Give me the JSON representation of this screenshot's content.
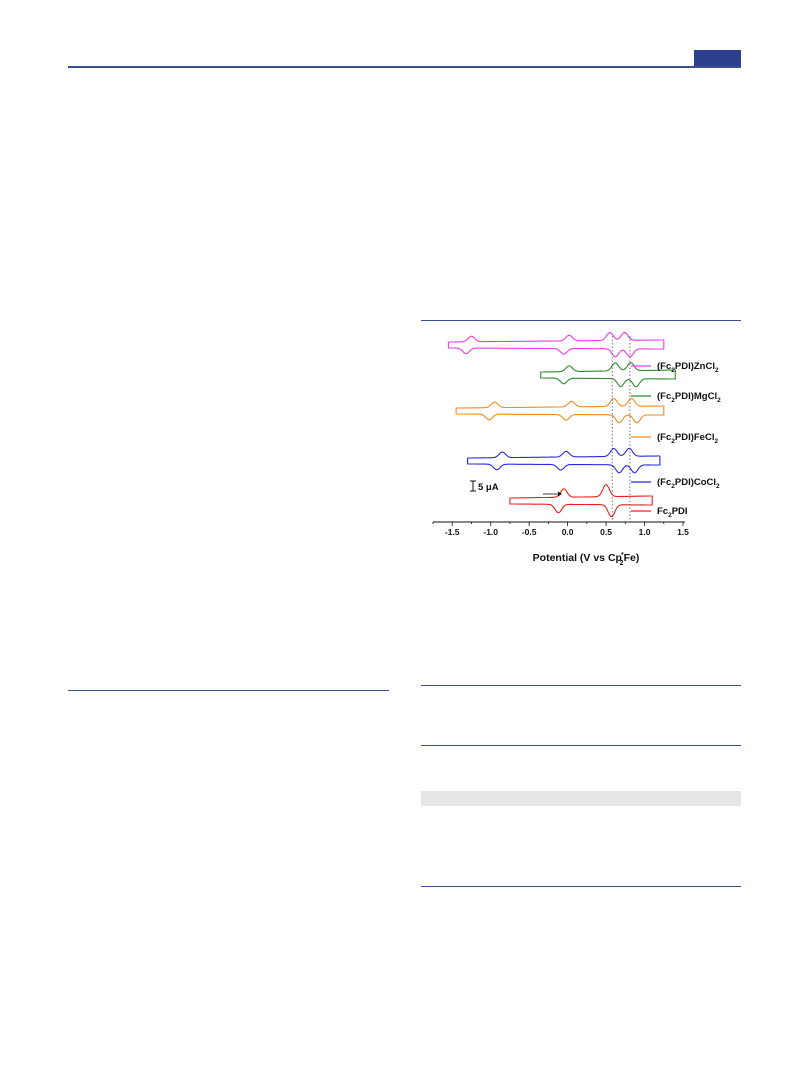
{
  "page": {
    "header_tab_color": "#2d3f8f",
    "rule_color": "#3b4f8a"
  },
  "figure": {
    "scale_bar_label": "5 μA",
    "chart_data": {
      "type": "line",
      "xlabel": "Potential (V vs Cp₂*Fe)",
      "xlabel_parts": {
        "main": "Potential (V vs Cp",
        "sub": "2",
        "sup": "*",
        "end": "Fe)"
      },
      "xlim": [
        -1.75,
        1.5
      ],
      "x_ticks": [
        "-1.5",
        "-1.0",
        "-0.5",
        "0.0",
        "0.5",
        "1.0",
        "1.5"
      ],
      "x_tick_values": [
        -1.5,
        -1.0,
        -0.5,
        0.0,
        0.5,
        1.0,
        1.5
      ],
      "reference_lines_V": [
        0.58,
        0.81
      ],
      "grid": false,
      "legend": "right, beside each trace",
      "series": [
        {
          "name": "(Fc2PDI)ZnCl2",
          "parts": [
            "(Fc",
            "2",
            "PDI)ZnCl",
            "2"
          ],
          "color": "#e83ee8",
          "start": -1.55,
          "end": 1.25,
          "reductions": [
            -1.25,
            0.02
          ],
          "oxidations": [
            0.55,
            0.74
          ]
        },
        {
          "name": "(Fc2PDI)MgCl2",
          "parts": [
            "(Fc",
            "2",
            "PDI)MgCl",
            "2"
          ],
          "color": "#2e8b2e",
          "start": -0.35,
          "end": 1.4,
          "reductions": [
            0.02
          ],
          "oxidations": [
            0.62,
            0.82
          ]
        },
        {
          "name": "(Fc2PDI)FeCl2",
          "parts": [
            "(Fc",
            "2",
            "PDI)FeCl",
            "2"
          ],
          "color": "#f28c1e",
          "start": -1.45,
          "end": 1.25,
          "reductions": [
            -0.95,
            0.05
          ],
          "oxidations": [
            0.6,
            0.83
          ]
        },
        {
          "name": "(Fc2PDI)CoCl2",
          "parts": [
            "(Fc",
            "2",
            "PDI)CoCl",
            "2"
          ],
          "color": "#2a2ae0",
          "start": -1.3,
          "end": 1.2,
          "reductions": [
            -0.85,
            -0.02
          ],
          "oxidations": [
            0.6,
            0.8
          ]
        },
        {
          "name": "Fc2PDI",
          "parts": [
            "Fc",
            "2",
            "PDI",
            ""
          ],
          "color": "#e82020",
          "start": -0.75,
          "end": 1.1,
          "reductions": [
            -0.05
          ],
          "oxidations": [
            0.5
          ]
        }
      ]
    }
  }
}
